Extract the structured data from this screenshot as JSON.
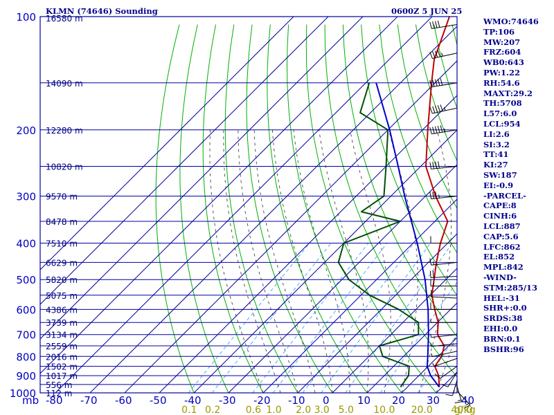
{
  "header": {
    "title": "KLMN (74646) Sounding",
    "time": "0600Z  5 JUN 25"
  },
  "indices": [
    "WMO:74646",
    "TP:106",
    "MW:207",
    "FRZ:604",
    "WB0:643",
    "PW:1.22",
    "RH:54.6",
    "MAXT:29.2",
    "TH:5708",
    "L57:6.0",
    "LCL:954",
    "LI:2.6",
    "SI:3.2",
    "TT:41",
    "KI:27",
    "SW:187",
    "EI:-0.9",
    "-PARCEL-",
    "CAPE:8",
    "CINH:6",
    "LCL:887",
    "CAP:5.6",
    "LFC:862",
    "EL:852",
    "MPL:842",
    "-WIND-",
    "STM:285/13",
    "HEL:-31",
    "SHR+:0.0",
    "SRDS:38",
    "EHI:0.0",
    "BRN:0.1",
    "BSHR:96"
  ],
  "colors": {
    "isobar": "#0000a0",
    "isotherm": "#0000a0",
    "dry_adiabat": "#00b000",
    "moist_adiabat": "#303030",
    "mixing_ratio": "#4ba8ff",
    "temperature": "#c00000",
    "dewpoint": "#005000",
    "parcel": "#0000c8",
    "axis_text": "#0000c0",
    "mixing_text": "#999900",
    "height_text": "#000080"
  },
  "chart_data": {
    "type": "skew-t",
    "pressure_axis": {
      "unit_label": "mb",
      "ticks": [
        "100",
        "200",
        "300",
        "400",
        "500",
        "600",
        "700",
        "800",
        "900",
        "1000"
      ]
    },
    "temperature_axis": {
      "ticks": [
        "-80",
        "-70",
        "-60",
        "-50",
        "-40",
        "-30",
        "-20",
        "-10",
        "0",
        "10",
        "20",
        "30",
        "40"
      ],
      "range": [
        -80,
        40
      ]
    },
    "mixing_ratio_labels": [
      "0.1",
      "0.2",
      "0.6",
      "1.0",
      "2.0",
      "3.0",
      "5.0",
      "10.0",
      "20.0",
      "40.0"
    ],
    "mixing_ratio_unit": "g/kg",
    "heights": [
      {
        "p": 100,
        "label": "16580 m"
      },
      {
        "p": 150,
        "label": "14090 m"
      },
      {
        "p": 200,
        "label": "12280 m"
      },
      {
        "p": 250,
        "label": "10820 m"
      },
      {
        "p": 300,
        "label": "9570 m"
      },
      {
        "p": 350,
        "label": "8478 m"
      },
      {
        "p": 400,
        "label": "7510 m"
      },
      {
        "p": 450,
        "label": "6629 m"
      },
      {
        "p": 500,
        "label": "5820 m"
      },
      {
        "p": 550,
        "label": "5075 m"
      },
      {
        "p": 600,
        "label": "4386 m"
      },
      {
        "p": 650,
        "label": "3739 m"
      },
      {
        "p": 700,
        "label": "3134 m"
      },
      {
        "p": 750,
        "label": "2559 m"
      },
      {
        "p": 800,
        "label": "2016 m"
      },
      {
        "p": 850,
        "label": "1502 m"
      },
      {
        "p": 900,
        "label": "1017 m"
      },
      {
        "p": 950,
        "label": "556 m"
      },
      {
        "p": 1000,
        "label": "112 m"
      }
    ],
    "series": [
      {
        "key": "temperature",
        "points": [
          {
            "p": 965,
            "t": 29.2
          },
          {
            "p": 900,
            "t": 25.7
          },
          {
            "p": 850,
            "t": 21.9
          },
          {
            "p": 800,
            "t": 21.0
          },
          {
            "p": 750,
            "t": 18.7
          },
          {
            "p": 700,
            "t": 13.5
          },
          {
            "p": 650,
            "t": 10.2
          },
          {
            "p": 600,
            "t": 5.4
          },
          {
            "p": 550,
            "t": 0.5
          },
          {
            "p": 500,
            "t": -3.4
          },
          {
            "p": 450,
            "t": -7.7
          },
          {
            "p": 400,
            "t": -12.1
          },
          {
            "p": 350,
            "t": -16.3
          },
          {
            "p": 300,
            "t": -27.1
          },
          {
            "p": 250,
            "t": -38.5
          },
          {
            "p": 200,
            "t": -48.5
          },
          {
            "p": 150,
            "t": -61.0
          },
          {
            "p": 130,
            "t": -67.0
          },
          {
            "p": 100,
            "t": -75.0
          }
        ]
      },
      {
        "key": "dewpoint",
        "points": [
          {
            "p": 965,
            "t": 18.0
          },
          {
            "p": 900,
            "t": 17.0
          },
          {
            "p": 850,
            "t": 14.5
          },
          {
            "p": 800,
            "t": 4.0
          },
          {
            "p": 750,
            "t": 0.0
          },
          {
            "p": 700,
            "t": 8.0
          },
          {
            "p": 650,
            "t": 4.5
          },
          {
            "p": 600,
            "t": -5.0
          },
          {
            "p": 550,
            "t": -17.5
          },
          {
            "p": 500,
            "t": -28.0
          },
          {
            "p": 450,
            "t": -36.0
          },
          {
            "p": 400,
            "t": -40.0
          },
          {
            "p": 350,
            "t": -30.0
          },
          {
            "p": 330,
            "t": -44.0
          },
          {
            "p": 300,
            "t": -42.0
          },
          {
            "p": 250,
            "t": -50.0
          },
          {
            "p": 200,
            "t": -60.0
          },
          {
            "p": 180,
            "t": -73.0
          },
          {
            "p": 150,
            "t": -79.0
          }
        ]
      },
      {
        "key": "parcel",
        "points": [
          {
            "p": 965,
            "t": 29.2
          },
          {
            "p": 900,
            "t": 23.4
          },
          {
            "p": 850,
            "t": 19.7
          },
          {
            "p": 800,
            "t": 17.0
          },
          {
            "p": 700,
            "t": 10.9
          },
          {
            "p": 600,
            "t": 3.5
          },
          {
            "p": 500,
            "t": -6.0
          },
          {
            "p": 400,
            "t": -18.8
          },
          {
            "p": 300,
            "t": -36.0
          },
          {
            "p": 250,
            "t": -46.5
          },
          {
            "p": 200,
            "t": -59.5
          },
          {
            "p": 150,
            "t": -77.0
          }
        ]
      }
    ],
    "winds": [
      {
        "p": 990,
        "dir": 150,
        "kt": 15
      },
      {
        "p": 960,
        "dir": 170,
        "kt": 15
      },
      {
        "p": 925,
        "dir": 190,
        "kt": 10
      },
      {
        "p": 880,
        "dir": 200,
        "kt": 10
      },
      {
        "p": 850,
        "dir": 220,
        "kt": 10
      },
      {
        "p": 810,
        "dir": 240,
        "kt": 5
      },
      {
        "p": 775,
        "dir": 250,
        "kt": 5
      },
      {
        "p": 740,
        "dir": 260,
        "kt": 5
      },
      {
        "p": 700,
        "dir": 260,
        "kt": 5
      },
      {
        "p": 650,
        "dir": 270,
        "kt": 5
      },
      {
        "p": 600,
        "dir": 270,
        "kt": 10
      },
      {
        "p": 560,
        "dir": 275,
        "kt": 10
      },
      {
        "p": 520,
        "dir": 270,
        "kt": 15
      },
      {
        "p": 490,
        "dir": 265,
        "kt": 20
      },
      {
        "p": 450,
        "dir": 260,
        "kt": 15
      },
      {
        "p": 400,
        "dir": 270,
        "kt": 10
      },
      {
        "p": 300,
        "dir": 260,
        "kt": 35
      },
      {
        "p": 250,
        "dir": 260,
        "kt": 40
      },
      {
        "p": 200,
        "dir": 255,
        "kt": 55
      },
      {
        "p": 175,
        "dir": 250,
        "kt": 55
      },
      {
        "p": 150,
        "dir": 255,
        "kt": 50
      },
      {
        "p": 125,
        "dir": 250,
        "kt": 45
      },
      {
        "p": 105,
        "dir": 255,
        "kt": 40
      }
    ]
  }
}
